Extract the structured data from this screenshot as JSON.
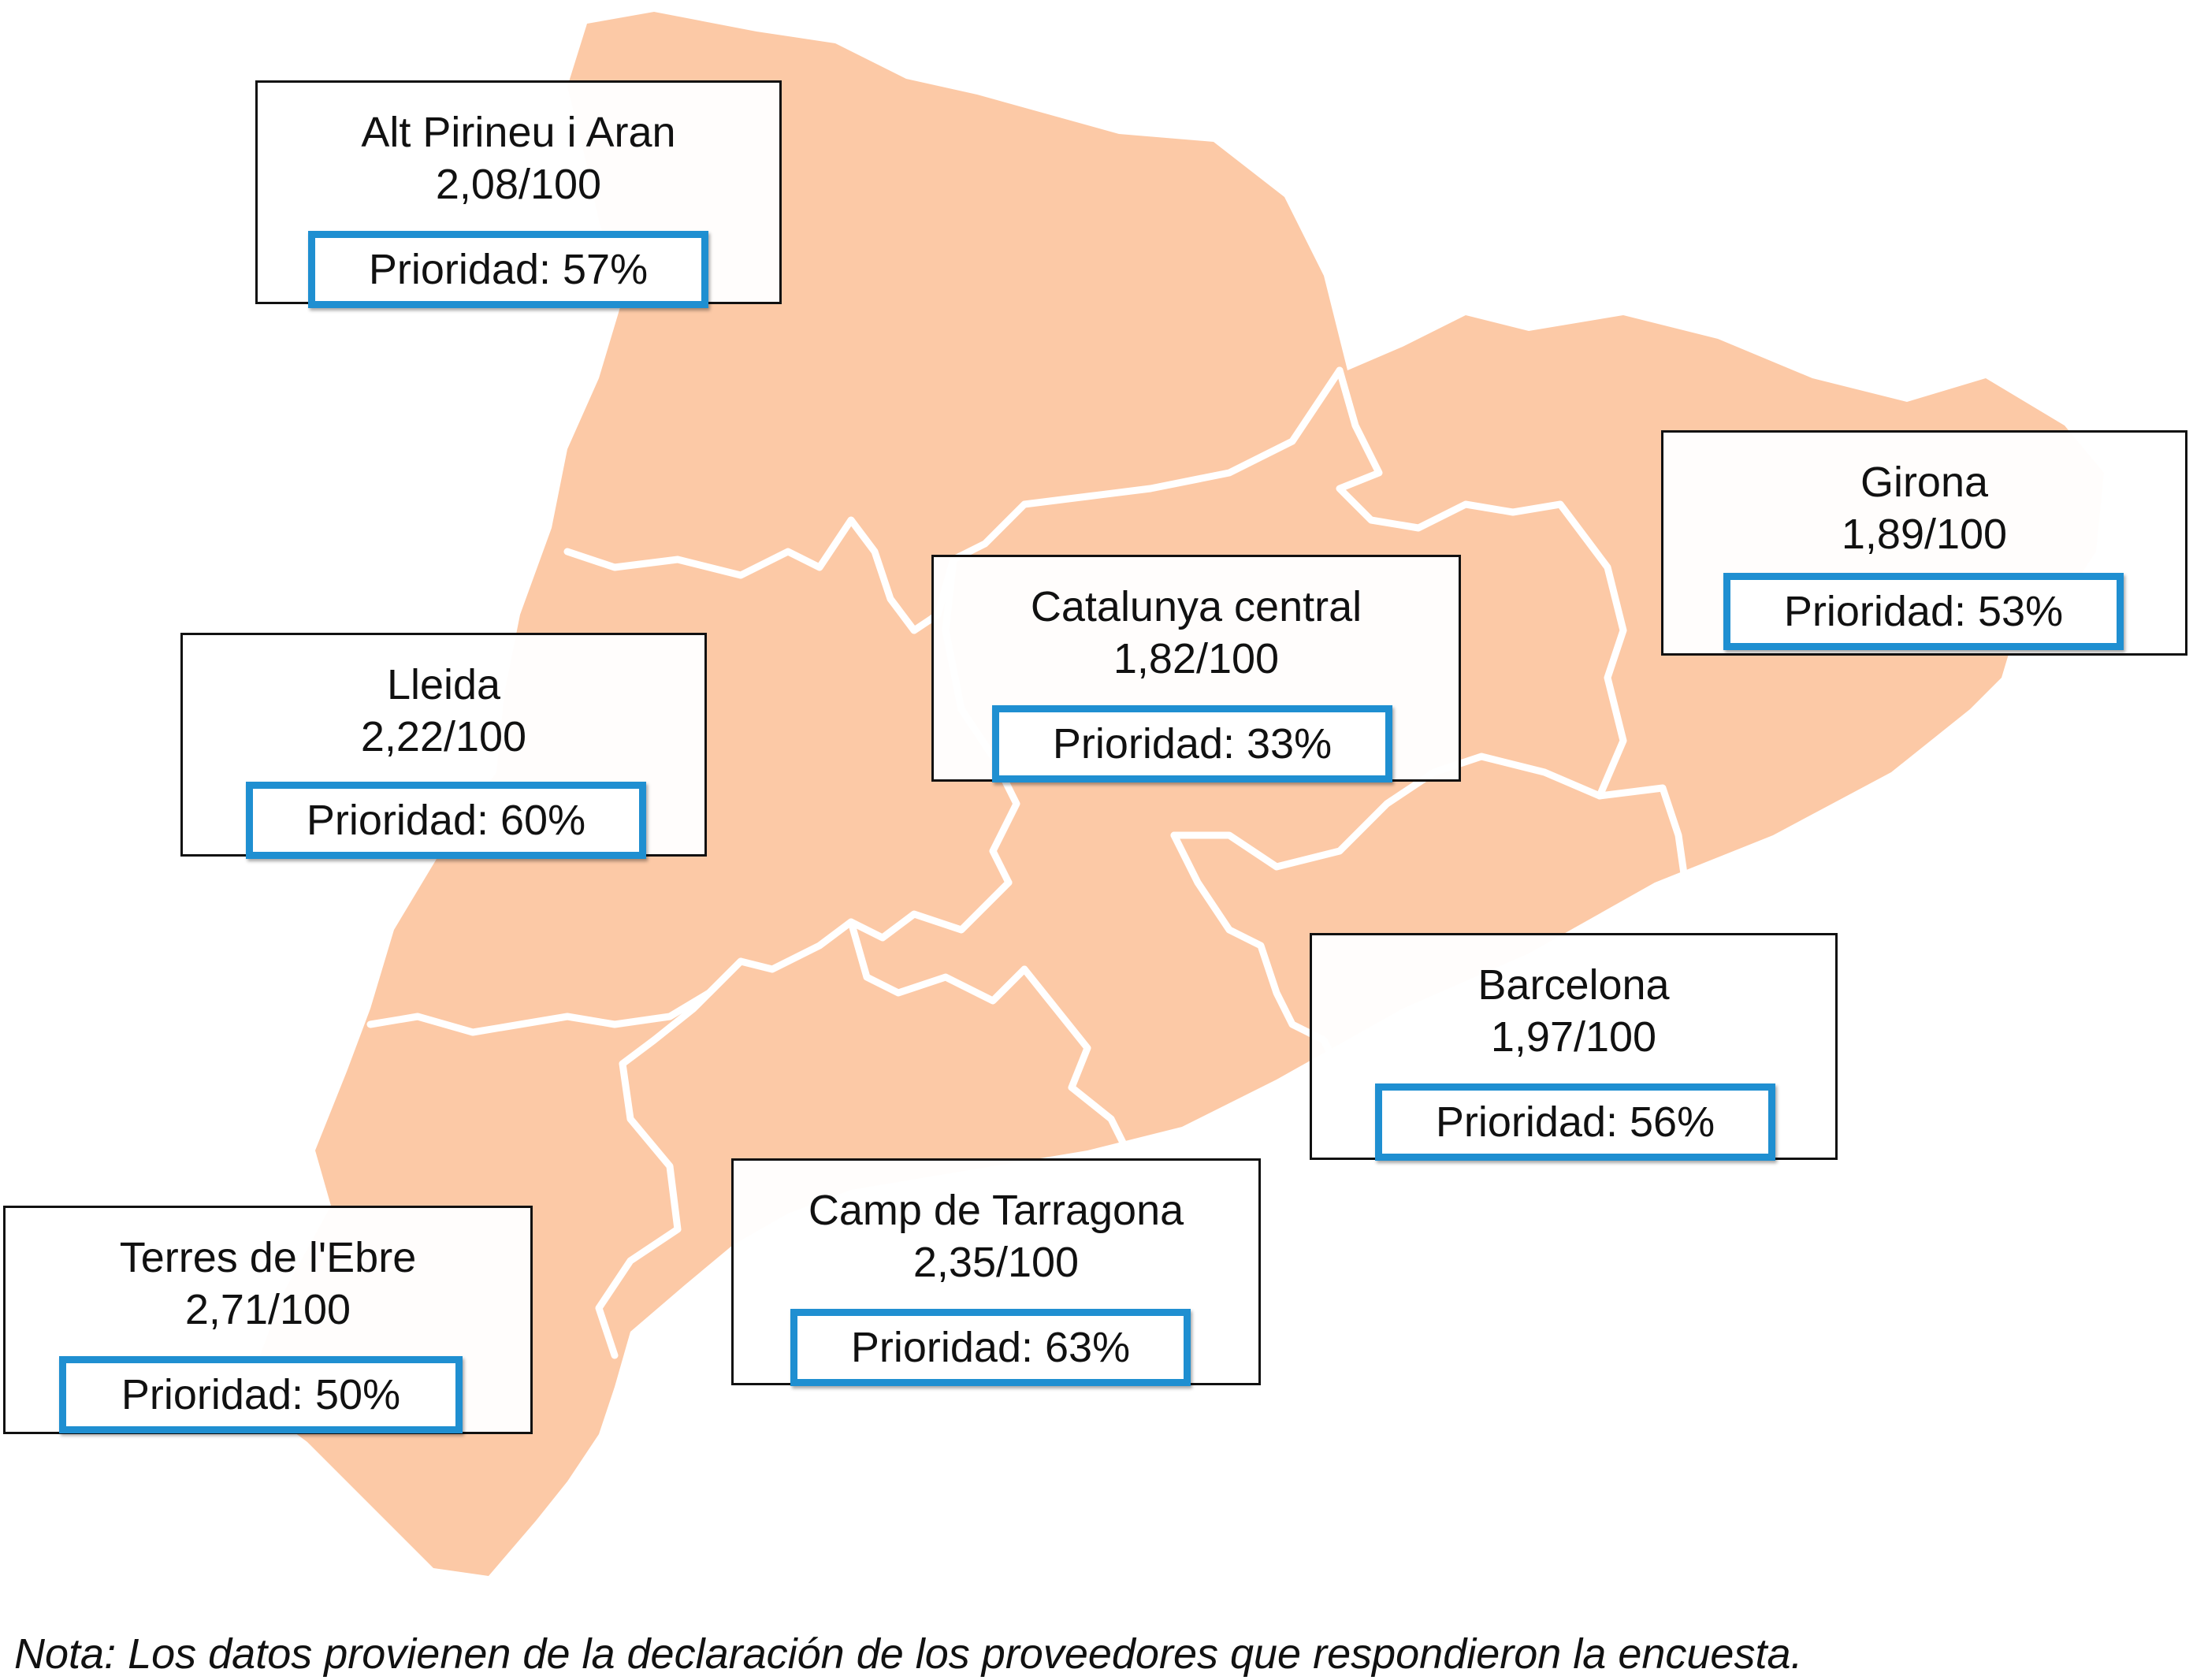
{
  "map": {
    "fill_color": "#FCC9A6",
    "border_color": "#ffffff",
    "priority_border_color": "#1f8fd1"
  },
  "regions": [
    {
      "name": "Alt Pirineu i Aran",
      "value": "2,08/100",
      "priority": "Prioridad: 57%"
    },
    {
      "name": "Girona",
      "value": "1,89/100",
      "priority": "Prioridad: 53%"
    },
    {
      "name": "Catalunya central",
      "value": "1,82/100",
      "priority": "Prioridad: 33%"
    },
    {
      "name": "Lleida",
      "value": "2,22/100",
      "priority": "Prioridad: 60%"
    },
    {
      "name": "Barcelona",
      "value": "1,97/100",
      "priority": "Prioridad: 56%"
    },
    {
      "name": "Camp de Tarragona",
      "value": "2,35/100",
      "priority": "Prioridad: 63%"
    },
    {
      "name": "Terres de l'Ebre",
      "value": "2,71/100",
      "priority": "Prioridad: 50%"
    }
  ],
  "note": "Nota: Los datos provienen de la declaración de los proveedores que respondieron la encuesta."
}
